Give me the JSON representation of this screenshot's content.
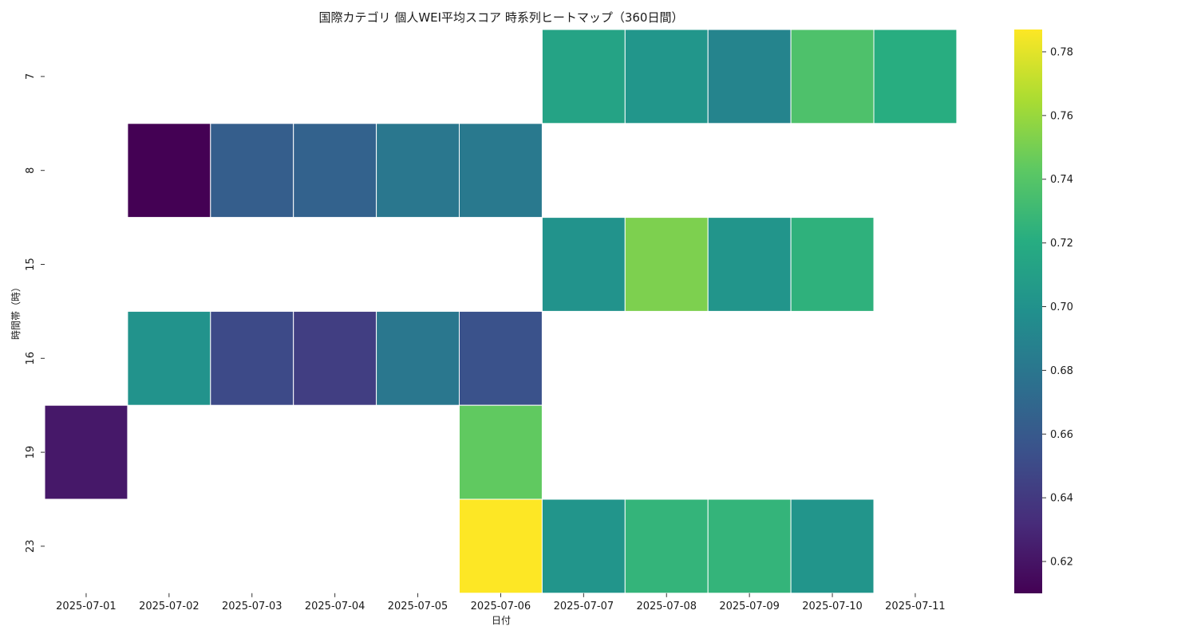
{
  "chart_data": {
    "type": "heatmap",
    "title": "国際カテゴリ 個人WEI平均スコア 時系列ヒートマップ（360日間）",
    "xlabel": "日付",
    "ylabel": "時間帯（時）",
    "x_categories": [
      "2025-07-01",
      "2025-07-02",
      "2025-07-03",
      "2025-07-04",
      "2025-07-05",
      "2025-07-06",
      "2025-07-07",
      "2025-07-08",
      "2025-07-09",
      "2025-07-10",
      "2025-07-11"
    ],
    "y_categories": [
      "7",
      "8",
      "15",
      "16",
      "19",
      "23"
    ],
    "values": [
      [
        null,
        null,
        null,
        null,
        null,
        null,
        0.713,
        0.703,
        0.69,
        0.737,
        0.721
      ],
      [
        null,
        0.61,
        0.663,
        0.666,
        0.681,
        0.682,
        null,
        null,
        null,
        null,
        null
      ],
      [
        null,
        null,
        null,
        null,
        null,
        null,
        0.701,
        0.752,
        0.702,
        0.724,
        null
      ],
      [
        null,
        0.701,
        0.65,
        0.643,
        0.681,
        0.655,
        null,
        null,
        null,
        null,
        null
      ],
      [
        0.622,
        null,
        null,
        null,
        null,
        0.744,
        null,
        null,
        null,
        null,
        null
      ],
      [
        null,
        null,
        null,
        null,
        null,
        0.787,
        0.702,
        0.726,
        0.726,
        0.702,
        null
      ]
    ],
    "colorbar": {
      "colormap": "viridis",
      "range": [
        0.61,
        0.787
      ],
      "ticks": [
        "0.62",
        "0.64",
        "0.66",
        "0.68",
        "0.70",
        "0.72",
        "0.74",
        "0.76",
        "0.78"
      ]
    }
  }
}
